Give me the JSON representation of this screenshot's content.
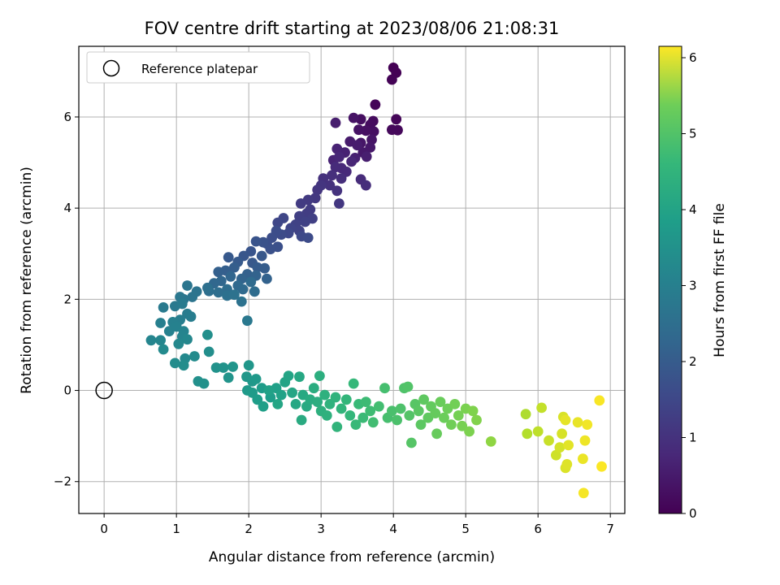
{
  "chart_data": {
    "type": "scatter",
    "title": "FOV centre drift starting at 2023/08/06 21:08:31",
    "xlabel": "Angular distance from reference (arcmin)",
    "ylabel": "Rotation from reference (arcmin)",
    "xlim": [
      -0.35,
      7.2
    ],
    "ylim": [
      -2.7,
      7.55
    ],
    "xticks": [
      0,
      1,
      2,
      3,
      4,
      5,
      6,
      7
    ],
    "yticks": [
      -2,
      0,
      2,
      4,
      6
    ],
    "ytick_labels": [
      "−2",
      "0",
      "2",
      "4",
      "6"
    ],
    "grid": true,
    "legend": {
      "location": "upper-left",
      "entries": [
        "Reference platepar"
      ]
    },
    "reference_point": {
      "x": 0,
      "y": 0
    },
    "colorbar": {
      "label": "Hours from first FF file",
      "colormap": "viridis",
      "range": [
        0,
        6.15
      ],
      "ticks": [
        0,
        1,
        2,
        3,
        4,
        5,
        6
      ]
    },
    "points": [
      {
        "x": 4.0,
        "y": 7.08,
        "h": 0.0
      },
      {
        "x": 4.04,
        "y": 6.97,
        "h": 0.02
      },
      {
        "x": 3.98,
        "y": 6.82,
        "h": 0.04
      },
      {
        "x": 3.75,
        "y": 6.27,
        "h": 0.07
      },
      {
        "x": 4.04,
        "y": 5.95,
        "h": 0.1
      },
      {
        "x": 4.06,
        "y": 5.71,
        "h": 0.12
      },
      {
        "x": 3.98,
        "y": 5.72,
        "h": 0.14
      },
      {
        "x": 3.72,
        "y": 5.91,
        "h": 0.17
      },
      {
        "x": 3.68,
        "y": 5.83,
        "h": 0.2
      },
      {
        "x": 3.55,
        "y": 5.95,
        "h": 0.22
      },
      {
        "x": 3.73,
        "y": 5.68,
        "h": 0.24
      },
      {
        "x": 3.62,
        "y": 5.7,
        "h": 0.27
      },
      {
        "x": 3.52,
        "y": 5.72,
        "h": 0.3
      },
      {
        "x": 3.45,
        "y": 5.98,
        "h": 0.32
      },
      {
        "x": 3.7,
        "y": 5.5,
        "h": 0.35
      },
      {
        "x": 3.55,
        "y": 5.43,
        "h": 0.37
      },
      {
        "x": 3.68,
        "y": 5.33,
        "h": 0.4
      },
      {
        "x": 3.58,
        "y": 5.22,
        "h": 0.42
      },
      {
        "x": 3.4,
        "y": 5.46,
        "h": 0.45
      },
      {
        "x": 3.5,
        "y": 5.38,
        "h": 0.47
      },
      {
        "x": 3.2,
        "y": 5.87,
        "h": 0.5
      },
      {
        "x": 3.63,
        "y": 5.13,
        "h": 0.52
      },
      {
        "x": 3.47,
        "y": 5.1,
        "h": 0.55
      },
      {
        "x": 3.33,
        "y": 5.22,
        "h": 0.57
      },
      {
        "x": 3.22,
        "y": 5.3,
        "h": 0.6
      },
      {
        "x": 3.17,
        "y": 5.05,
        "h": 0.62
      },
      {
        "x": 3.42,
        "y": 5.02,
        "h": 0.65
      },
      {
        "x": 3.25,
        "y": 5.12,
        "h": 0.67
      },
      {
        "x": 3.28,
        "y": 4.88,
        "h": 0.7
      },
      {
        "x": 3.35,
        "y": 4.8,
        "h": 0.72
      },
      {
        "x": 3.2,
        "y": 4.9,
        "h": 0.75
      },
      {
        "x": 3.55,
        "y": 4.63,
        "h": 0.77
      },
      {
        "x": 3.62,
        "y": 4.5,
        "h": 0.8
      },
      {
        "x": 3.28,
        "y": 4.65,
        "h": 0.82
      },
      {
        "x": 3.15,
        "y": 4.72,
        "h": 0.85
      },
      {
        "x": 3.03,
        "y": 4.65,
        "h": 0.87
      },
      {
        "x": 3.12,
        "y": 4.5,
        "h": 0.9
      },
      {
        "x": 3.22,
        "y": 4.38,
        "h": 0.92
      },
      {
        "x": 3.0,
        "y": 4.5,
        "h": 0.95
      },
      {
        "x": 2.95,
        "y": 4.4,
        "h": 0.97
      },
      {
        "x": 3.25,
        "y": 4.1,
        "h": 1.0
      },
      {
        "x": 2.92,
        "y": 4.22,
        "h": 1.02
      },
      {
        "x": 2.82,
        "y": 4.18,
        "h": 1.05
      },
      {
        "x": 2.72,
        "y": 4.1,
        "h": 1.07
      },
      {
        "x": 2.85,
        "y": 3.97,
        "h": 1.1
      },
      {
        "x": 2.8,
        "y": 3.88,
        "h": 1.12
      },
      {
        "x": 2.7,
        "y": 3.82,
        "h": 1.15
      },
      {
        "x": 2.88,
        "y": 3.77,
        "h": 1.17
      },
      {
        "x": 2.78,
        "y": 3.7,
        "h": 1.2
      },
      {
        "x": 2.65,
        "y": 3.64,
        "h": 1.22
      },
      {
        "x": 2.7,
        "y": 3.5,
        "h": 1.25
      },
      {
        "x": 2.58,
        "y": 3.56,
        "h": 1.27
      },
      {
        "x": 2.48,
        "y": 3.78,
        "h": 1.3
      },
      {
        "x": 2.4,
        "y": 3.68,
        "h": 1.32
      },
      {
        "x": 2.55,
        "y": 3.45,
        "h": 1.35
      },
      {
        "x": 2.73,
        "y": 3.38,
        "h": 1.37
      },
      {
        "x": 2.82,
        "y": 3.35,
        "h": 1.4
      },
      {
        "x": 2.45,
        "y": 3.42,
        "h": 1.42
      },
      {
        "x": 2.38,
        "y": 3.5,
        "h": 1.45
      },
      {
        "x": 2.32,
        "y": 3.35,
        "h": 1.47
      },
      {
        "x": 2.25,
        "y": 3.22,
        "h": 1.5
      },
      {
        "x": 2.4,
        "y": 3.15,
        "h": 1.52
      },
      {
        "x": 2.3,
        "y": 3.1,
        "h": 1.55
      },
      {
        "x": 2.2,
        "y": 3.25,
        "h": 1.57
      },
      {
        "x": 2.1,
        "y": 3.27,
        "h": 1.6
      },
      {
        "x": 2.03,
        "y": 3.05,
        "h": 1.62
      },
      {
        "x": 1.93,
        "y": 2.95,
        "h": 1.65
      },
      {
        "x": 2.18,
        "y": 2.95,
        "h": 1.67
      },
      {
        "x": 2.05,
        "y": 2.8,
        "h": 1.7
      },
      {
        "x": 1.72,
        "y": 2.92,
        "h": 1.72
      },
      {
        "x": 1.85,
        "y": 2.82,
        "h": 1.75
      },
      {
        "x": 2.12,
        "y": 2.7,
        "h": 1.77
      },
      {
        "x": 2.22,
        "y": 2.68,
        "h": 1.8
      },
      {
        "x": 1.8,
        "y": 2.7,
        "h": 1.82
      },
      {
        "x": 1.68,
        "y": 2.63,
        "h": 1.85
      },
      {
        "x": 1.58,
        "y": 2.6,
        "h": 1.87
      },
      {
        "x": 1.98,
        "y": 2.55,
        "h": 1.9
      },
      {
        "x": 2.25,
        "y": 2.45,
        "h": 1.92
      },
      {
        "x": 2.1,
        "y": 2.52,
        "h": 1.95
      },
      {
        "x": 1.9,
        "y": 2.45,
        "h": 1.97
      },
      {
        "x": 1.75,
        "y": 2.5,
        "h": 2.0
      },
      {
        "x": 1.62,
        "y": 2.4,
        "h": 2.02
      },
      {
        "x": 1.52,
        "y": 2.35,
        "h": 2.05
      },
      {
        "x": 1.85,
        "y": 2.3,
        "h": 2.07
      },
      {
        "x": 1.92,
        "y": 2.22,
        "h": 2.1
      },
      {
        "x": 2.03,
        "y": 2.38,
        "h": 2.12
      },
      {
        "x": 2.08,
        "y": 2.17,
        "h": 2.15
      },
      {
        "x": 1.7,
        "y": 2.22,
        "h": 2.17
      },
      {
        "x": 1.58,
        "y": 2.15,
        "h": 2.2
      },
      {
        "x": 1.45,
        "y": 2.18,
        "h": 2.22
      },
      {
        "x": 1.43,
        "y": 2.25,
        "h": 2.25
      },
      {
        "x": 1.7,
        "y": 2.08,
        "h": 2.27
      },
      {
        "x": 1.8,
        "y": 2.1,
        "h": 2.3
      },
      {
        "x": 1.9,
        "y": 1.95,
        "h": 2.32
      },
      {
        "x": 1.28,
        "y": 2.17,
        "h": 2.35
      },
      {
        "x": 1.22,
        "y": 2.05,
        "h": 2.37
      },
      {
        "x": 1.15,
        "y": 2.3,
        "h": 2.4
      },
      {
        "x": 1.1,
        "y": 2.0,
        "h": 2.42
      },
      {
        "x": 1.05,
        "y": 2.05,
        "h": 2.45
      },
      {
        "x": 1.98,
        "y": 1.53,
        "h": 2.47
      },
      {
        "x": 0.98,
        "y": 1.85,
        "h": 2.5
      },
      {
        "x": 0.82,
        "y": 1.82,
        "h": 2.52
      },
      {
        "x": 1.08,
        "y": 1.9,
        "h": 2.55
      },
      {
        "x": 1.15,
        "y": 1.68,
        "h": 2.57
      },
      {
        "x": 1.2,
        "y": 1.62,
        "h": 2.6
      },
      {
        "x": 1.05,
        "y": 1.55,
        "h": 2.62
      },
      {
        "x": 0.78,
        "y": 1.48,
        "h": 2.65
      },
      {
        "x": 0.95,
        "y": 1.5,
        "h": 2.67
      },
      {
        "x": 0.9,
        "y": 1.3,
        "h": 2.7
      },
      {
        "x": 1.0,
        "y": 1.4,
        "h": 2.72
      },
      {
        "x": 1.1,
        "y": 1.3,
        "h": 2.75
      },
      {
        "x": 1.08,
        "y": 1.18,
        "h": 2.77
      },
      {
        "x": 0.65,
        "y": 1.1,
        "h": 2.8
      },
      {
        "x": 0.78,
        "y": 1.1,
        "h": 2.82
      },
      {
        "x": 1.15,
        "y": 1.12,
        "h": 2.85
      },
      {
        "x": 1.03,
        "y": 1.02,
        "h": 2.87
      },
      {
        "x": 1.12,
        "y": 0.7,
        "h": 2.9
      },
      {
        "x": 0.82,
        "y": 0.9,
        "h": 2.92
      },
      {
        "x": 1.25,
        "y": 0.75,
        "h": 2.95
      },
      {
        "x": 0.98,
        "y": 0.6,
        "h": 2.97
      },
      {
        "x": 1.1,
        "y": 0.55,
        "h": 3.0
      },
      {
        "x": 1.45,
        "y": 0.85,
        "h": 3.02
      },
      {
        "x": 1.43,
        "y": 1.22,
        "h": 3.05
      },
      {
        "x": 1.3,
        "y": 0.2,
        "h": 3.07
      },
      {
        "x": 1.38,
        "y": 0.15,
        "h": 3.1
      },
      {
        "x": 1.55,
        "y": 0.5,
        "h": 3.12
      },
      {
        "x": 1.65,
        "y": 0.5,
        "h": 3.15
      },
      {
        "x": 1.72,
        "y": 0.28,
        "h": 3.17
      },
      {
        "x": 1.78,
        "y": 0.52,
        "h": 3.2
      },
      {
        "x": 2.0,
        "y": 0.55,
        "h": 3.22
      },
      {
        "x": 1.97,
        "y": 0.3,
        "h": 3.25
      },
      {
        "x": 2.05,
        "y": 0.2,
        "h": 3.27
      },
      {
        "x": 2.1,
        "y": 0.25,
        "h": 3.3
      },
      {
        "x": 1.98,
        "y": 0.0,
        "h": 3.32
      },
      {
        "x": 2.05,
        "y": -0.05,
        "h": 3.35
      },
      {
        "x": 2.18,
        "y": 0.05,
        "h": 3.37
      },
      {
        "x": 2.12,
        "y": -0.2,
        "h": 3.4
      },
      {
        "x": 2.3,
        "y": -0.15,
        "h": 3.42
      },
      {
        "x": 2.2,
        "y": -0.35,
        "h": 3.45
      },
      {
        "x": 2.38,
        "y": 0.05,
        "h": 3.47
      },
      {
        "x": 2.28,
        "y": 0.0,
        "h": 3.5
      },
      {
        "x": 2.45,
        "y": -0.1,
        "h": 3.52
      },
      {
        "x": 2.5,
        "y": 0.18,
        "h": 3.55
      },
      {
        "x": 2.55,
        "y": 0.32,
        "h": 3.57
      },
      {
        "x": 2.4,
        "y": -0.3,
        "h": 3.6
      },
      {
        "x": 2.6,
        "y": -0.05,
        "h": 3.62
      },
      {
        "x": 2.65,
        "y": -0.3,
        "h": 3.65
      },
      {
        "x": 2.7,
        "y": 0.3,
        "h": 3.67
      },
      {
        "x": 2.75,
        "y": -0.1,
        "h": 3.7
      },
      {
        "x": 2.8,
        "y": -0.35,
        "h": 3.72
      },
      {
        "x": 2.73,
        "y": -0.65,
        "h": 3.75
      },
      {
        "x": 2.85,
        "y": -0.2,
        "h": 3.77
      },
      {
        "x": 2.9,
        "y": 0.05,
        "h": 3.8
      },
      {
        "x": 2.95,
        "y": -0.25,
        "h": 3.82
      },
      {
        "x": 2.98,
        "y": 0.32,
        "h": 3.85
      },
      {
        "x": 3.0,
        "y": -0.45,
        "h": 3.87
      },
      {
        "x": 3.05,
        "y": -0.1,
        "h": 3.9
      },
      {
        "x": 3.08,
        "y": -0.55,
        "h": 3.92
      },
      {
        "x": 3.12,
        "y": -0.3,
        "h": 3.95
      },
      {
        "x": 3.2,
        "y": -0.15,
        "h": 3.97
      },
      {
        "x": 3.22,
        "y": -0.8,
        "h": 4.0
      },
      {
        "x": 3.28,
        "y": -0.4,
        "h": 4.02
      },
      {
        "x": 3.35,
        "y": -0.2,
        "h": 4.05
      },
      {
        "x": 3.4,
        "y": -0.55,
        "h": 4.07
      },
      {
        "x": 3.45,
        "y": 0.15,
        "h": 4.1
      },
      {
        "x": 3.48,
        "y": -0.75,
        "h": 4.12
      },
      {
        "x": 3.52,
        "y": -0.3,
        "h": 4.15
      },
      {
        "x": 3.58,
        "y": -0.6,
        "h": 4.17
      },
      {
        "x": 3.62,
        "y": -0.25,
        "h": 4.2
      },
      {
        "x": 3.68,
        "y": -0.45,
        "h": 4.22
      },
      {
        "x": 3.72,
        "y": -0.7,
        "h": 4.25
      },
      {
        "x": 3.8,
        "y": -0.35,
        "h": 4.27
      },
      {
        "x": 3.88,
        "y": 0.05,
        "h": 4.3
      },
      {
        "x": 3.92,
        "y": -0.6,
        "h": 4.32
      },
      {
        "x": 3.98,
        "y": -0.45,
        "h": 4.35
      },
      {
        "x": 4.05,
        "y": -0.65,
        "h": 4.37
      },
      {
        "x": 4.1,
        "y": -0.4,
        "h": 4.4
      },
      {
        "x": 4.15,
        "y": 0.05,
        "h": 4.42
      },
      {
        "x": 4.2,
        "y": 0.08,
        "h": 4.45
      },
      {
        "x": 4.22,
        "y": -0.55,
        "h": 4.47
      },
      {
        "x": 4.25,
        "y": -1.15,
        "h": 4.5
      },
      {
        "x": 4.3,
        "y": -0.3,
        "h": 4.52
      },
      {
        "x": 4.35,
        "y": -0.45,
        "h": 4.55
      },
      {
        "x": 4.38,
        "y": -0.75,
        "h": 4.57
      },
      {
        "x": 4.42,
        "y": -0.2,
        "h": 4.6
      },
      {
        "x": 4.48,
        "y": -0.6,
        "h": 4.62
      },
      {
        "x": 4.52,
        "y": -0.35,
        "h": 4.65
      },
      {
        "x": 4.58,
        "y": -0.5,
        "h": 4.67
      },
      {
        "x": 4.6,
        "y": -0.95,
        "h": 4.7
      },
      {
        "x": 4.65,
        "y": -0.25,
        "h": 4.72
      },
      {
        "x": 4.7,
        "y": -0.6,
        "h": 4.75
      },
      {
        "x": 4.75,
        "y": -0.4,
        "h": 4.77
      },
      {
        "x": 4.8,
        "y": -0.75,
        "h": 4.8
      },
      {
        "x": 4.85,
        "y": -0.3,
        "h": 4.82
      },
      {
        "x": 4.9,
        "y": -0.55,
        "h": 4.85
      },
      {
        "x": 4.95,
        "y": -0.78,
        "h": 4.87
      },
      {
        "x": 5.0,
        "y": -0.4,
        "h": 4.9
      },
      {
        "x": 5.05,
        "y": -0.9,
        "h": 4.92
      },
      {
        "x": 5.1,
        "y": -0.45,
        "h": 4.95
      },
      {
        "x": 5.15,
        "y": -0.65,
        "h": 4.97
      },
      {
        "x": 5.35,
        "y": -1.12,
        "h": 5.1
      },
      {
        "x": 5.83,
        "y": -0.52,
        "h": 5.4
      },
      {
        "x": 5.85,
        "y": -0.95,
        "h": 5.45
      },
      {
        "x": 6.0,
        "y": -0.9,
        "h": 5.55
      },
      {
        "x": 6.05,
        "y": -0.38,
        "h": 5.6
      },
      {
        "x": 6.15,
        "y": -1.1,
        "h": 5.65
      },
      {
        "x": 6.25,
        "y": -1.42,
        "h": 5.7
      },
      {
        "x": 6.3,
        "y": -1.25,
        "h": 5.75
      },
      {
        "x": 6.33,
        "y": -0.95,
        "h": 5.78
      },
      {
        "x": 6.35,
        "y": -0.58,
        "h": 5.8
      },
      {
        "x": 6.38,
        "y": -1.7,
        "h": 5.83
      },
      {
        "x": 6.4,
        "y": -1.62,
        "h": 5.86
      },
      {
        "x": 6.42,
        "y": -1.2,
        "h": 5.89
      },
      {
        "x": 6.38,
        "y": -0.65,
        "h": 5.92
      },
      {
        "x": 6.55,
        "y": -0.7,
        "h": 5.95
      },
      {
        "x": 6.62,
        "y": -1.5,
        "h": 5.98
      },
      {
        "x": 6.65,
        "y": -1.1,
        "h": 6.01
      },
      {
        "x": 6.68,
        "y": -0.75,
        "h": 6.04
      },
      {
        "x": 6.63,
        "y": -2.25,
        "h": 6.07
      },
      {
        "x": 6.85,
        "y": -0.22,
        "h": 6.1
      },
      {
        "x": 6.88,
        "y": -1.67,
        "h": 6.13
      }
    ]
  }
}
